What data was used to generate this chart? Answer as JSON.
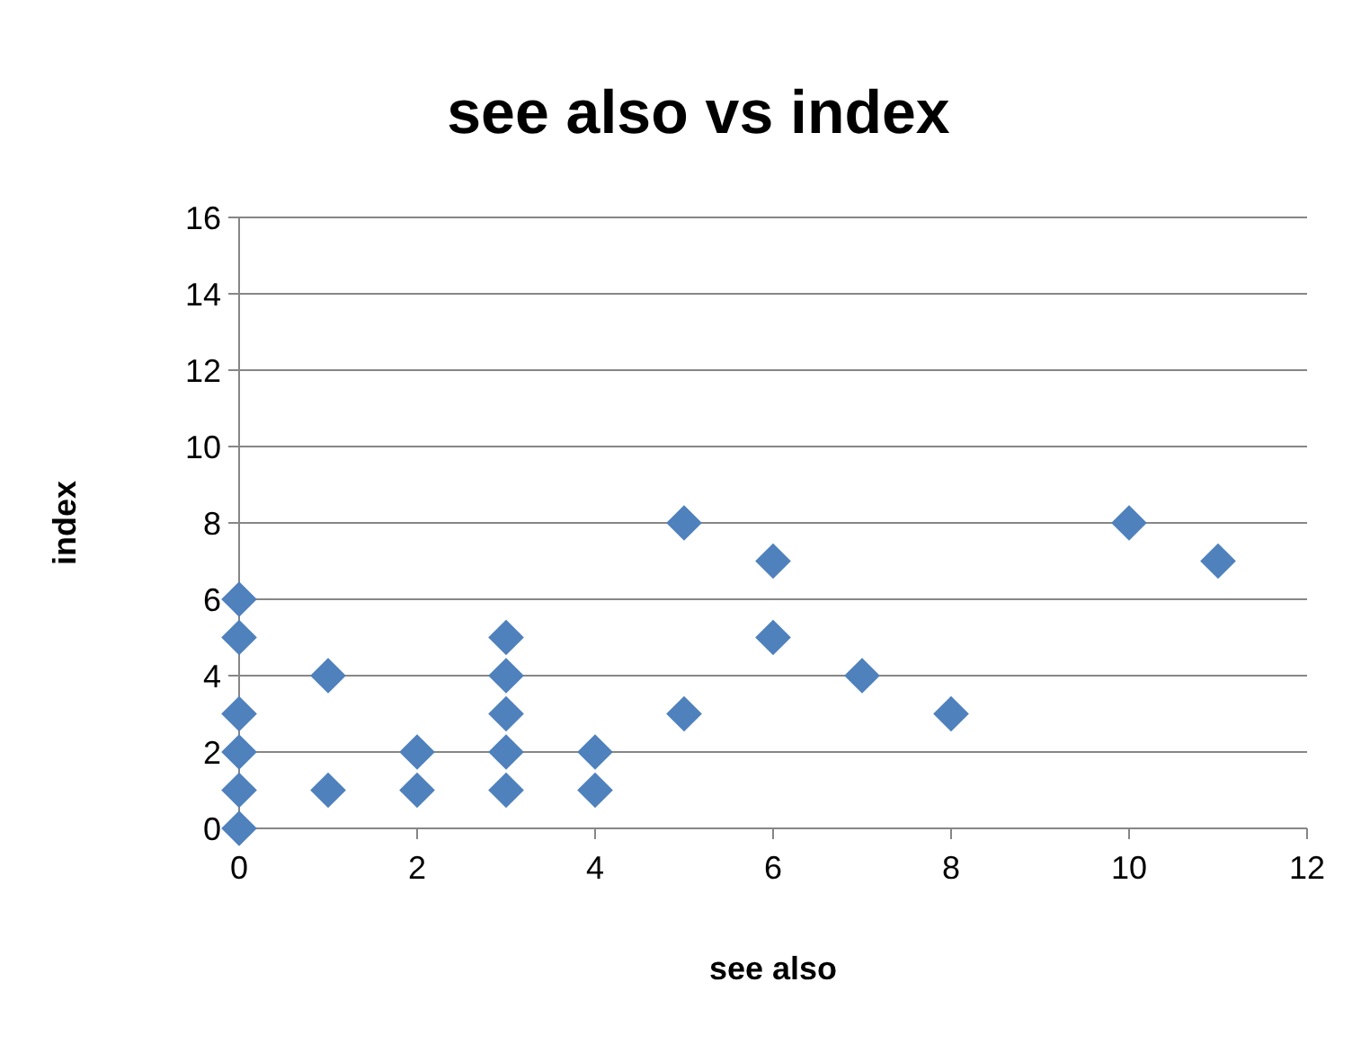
{
  "chart_data": {
    "type": "scatter",
    "title": "see also vs index",
    "xlabel": "see also",
    "ylabel": "index",
    "x": [
      0,
      0,
      0,
      0,
      0,
      0,
      1,
      1,
      2,
      2,
      3,
      3,
      3,
      3,
      3,
      4,
      4,
      5,
      5,
      6,
      6,
      7,
      8,
      10,
      11
    ],
    "values": [
      0,
      1,
      2,
      3,
      5,
      6,
      1,
      4,
      1,
      2,
      1,
      2,
      3,
      4,
      5,
      1,
      2,
      3,
      8,
      5,
      7,
      4,
      3,
      8,
      7
    ],
    "color": "#4f81bd",
    "marker": "diamond",
    "grid": "y",
    "xlim": [
      0,
      12
    ],
    "xticks": [
      0,
      2,
      4,
      6,
      8,
      10,
      12
    ],
    "ylim": [
      0,
      16
    ],
    "yticks": [
      0,
      2,
      4,
      6,
      8,
      10,
      12,
      14,
      16
    ]
  }
}
